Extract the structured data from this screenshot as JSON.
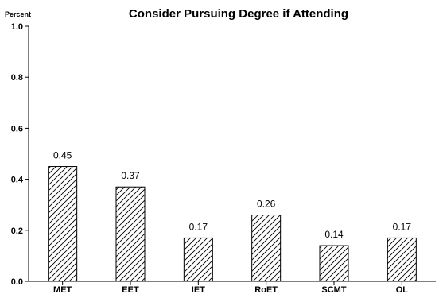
{
  "chart_data": {
    "type": "bar",
    "title": "Consider Pursuing Degree if Attending",
    "ylabel": "Percent",
    "xlabel": "",
    "categories": [
      "MET",
      "EET",
      "IET",
      "RoET",
      "SCMT",
      "OL"
    ],
    "values": [
      0.45,
      0.37,
      0.17,
      0.26,
      0.14,
      0.17
    ],
    "data_labels": [
      "0.45",
      "0.37",
      "0.17",
      "0.26",
      "0.14",
      "0.17"
    ],
    "ylim": [
      0,
      1.0
    ],
    "yticks": [
      0.0,
      0.2,
      0.4,
      0.6,
      0.8,
      1.0
    ],
    "ytick_labels": [
      "0.0",
      "0.2",
      "0.4",
      "0.6",
      "0.8",
      "1.0"
    ],
    "grid": false,
    "legend": "none",
    "bar_fill": "hatched",
    "colors": {
      "bar_stroke": "#000000",
      "hatch": "#000000",
      "axis": "#000000",
      "text": "#000000"
    }
  }
}
